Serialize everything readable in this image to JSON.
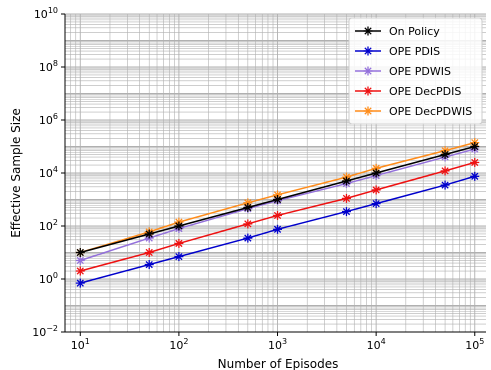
{
  "chart_data": {
    "type": "line",
    "xlabel": "Number of Episodes",
    "ylabel": "Effective Sample Size",
    "xscale": "log",
    "yscale": "log",
    "xlim": [
      7,
      130000
    ],
    "ylim": [
      0.01,
      10000000000
    ],
    "grid": "on (major and minor)",
    "legend_position": "top-right",
    "x_ticks": [
      {
        "value": 10,
        "base": "10",
        "exp": "1"
      },
      {
        "value": 100,
        "base": "10",
        "exp": "2"
      },
      {
        "value": 1000,
        "base": "10",
        "exp": "3"
      },
      {
        "value": 10000,
        "base": "10",
        "exp": "4"
      },
      {
        "value": 100000,
        "base": "10",
        "exp": "5"
      }
    ],
    "y_ticks": [
      {
        "value": 0.01,
        "base": "10",
        "exp": "−2"
      },
      {
        "value": 1,
        "base": "10",
        "exp": "0"
      },
      {
        "value": 100,
        "base": "10",
        "exp": "2"
      },
      {
        "value": 10000,
        "base": "10",
        "exp": "4"
      },
      {
        "value": 1000000,
        "base": "10",
        "exp": "6"
      },
      {
        "value": 100000000,
        "base": "10",
        "exp": "8"
      },
      {
        "value": 10000000000,
        "base": "10",
        "exp": "10"
      }
    ],
    "x": [
      10,
      50,
      100,
      500,
      1000,
      5000,
      10000,
      50000,
      100000
    ],
    "series": [
      {
        "name": "On Policy",
        "color": "#000000",
        "values": [
          10,
          50,
          100,
          500,
          1000,
          5000,
          10000,
          50000,
          100000
        ]
      },
      {
        "name": "OPE PDIS",
        "color": "#0000cc",
        "values": [
          0.7,
          3.5,
          7,
          35,
          75,
          350,
          700,
          3500,
          7500
        ]
      },
      {
        "name": "OPE PDWIS",
        "color": "#9370db",
        "values": [
          5,
          35,
          80,
          450,
          900,
          4000,
          8000,
          40000,
          80000
        ]
      },
      {
        "name": "OPE DecPDIS",
        "color": "#ee1111",
        "values": [
          2,
          10,
          22,
          120,
          250,
          1100,
          2300,
          12000,
          25000
        ]
      },
      {
        "name": "OPE DecPDWIS",
        "color": "#ff8c1a",
        "values": [
          10,
          60,
          140,
          750,
          1500,
          7000,
          15000,
          70000,
          140000
        ]
      }
    ]
  }
}
